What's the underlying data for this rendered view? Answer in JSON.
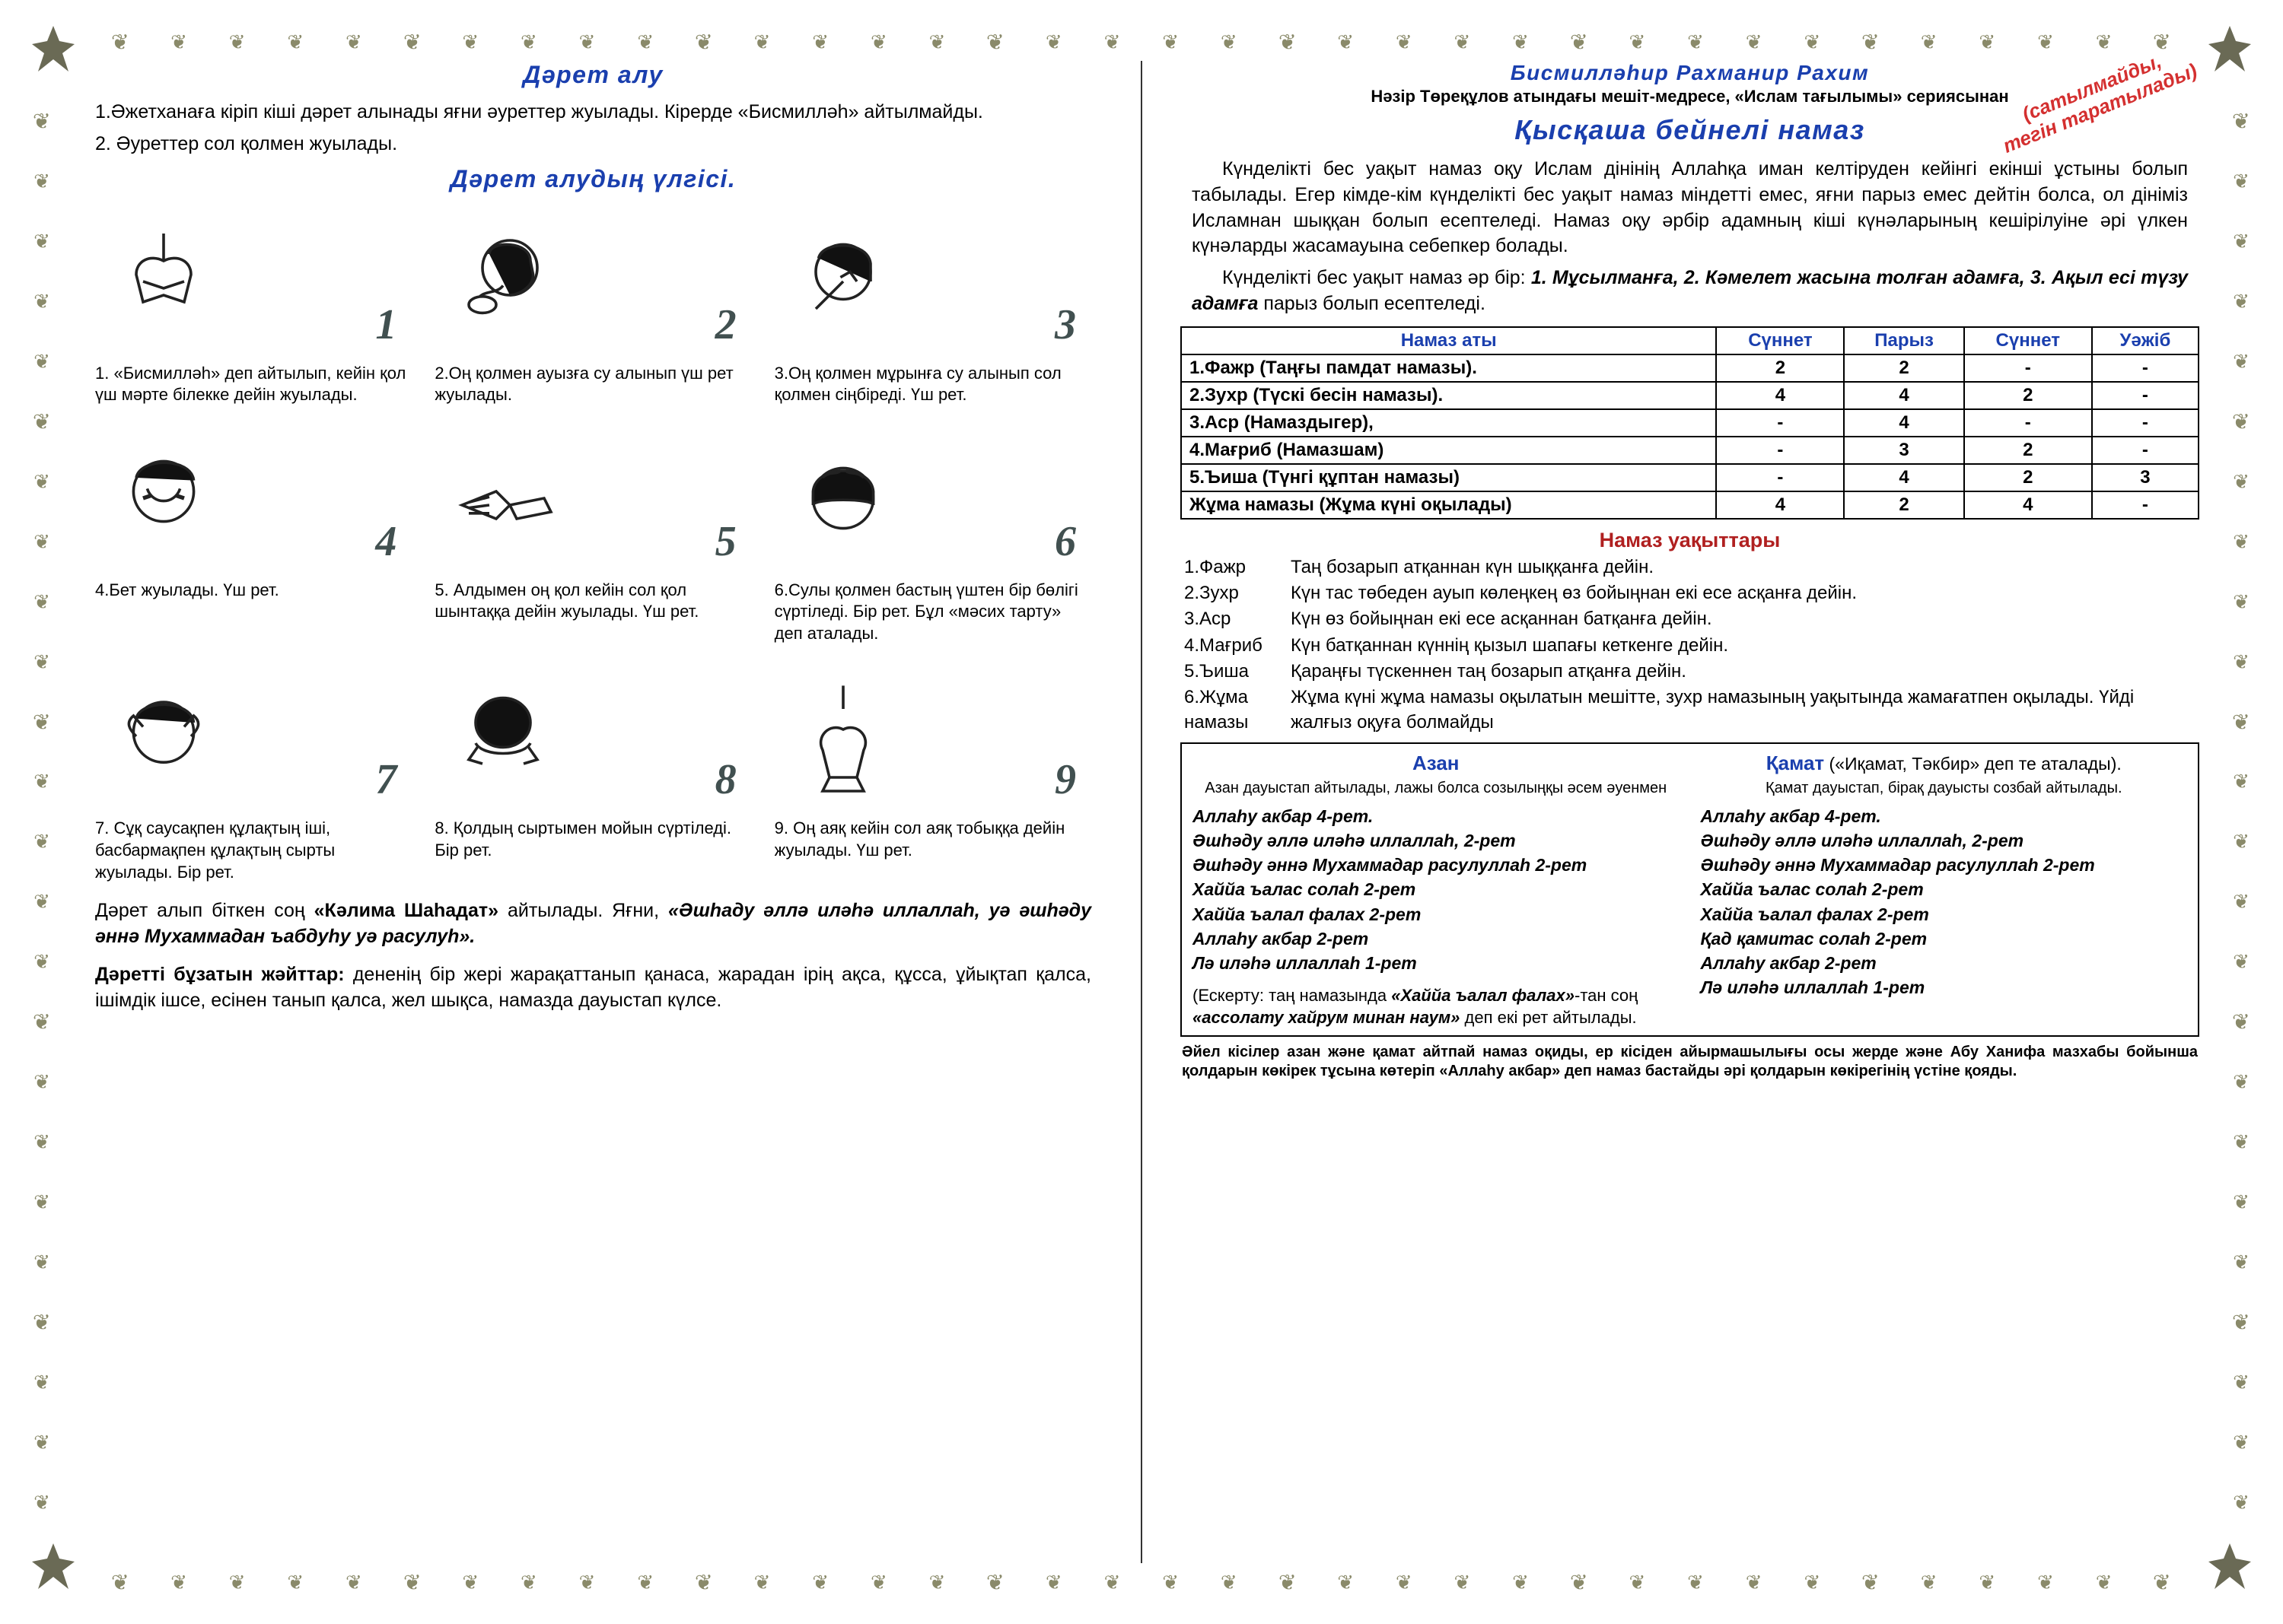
{
  "colors": {
    "title_blue": "#1a3fae",
    "accent_red": "#b02020",
    "stamp_red": "#d43030",
    "ornament": "#8a8a6a",
    "step_number": "#415050",
    "text": "#000000",
    "background": "#ffffff"
  },
  "stamp": {
    "line1": "(сатылмайды,",
    "line2": "тегін таратылады)"
  },
  "left": {
    "title1": "Дәрет алу",
    "intro1": "1.Әжетханаға кіріп кіші дәрет алынады яғни әуреттер жуылады. Кірерде «Бисмилләһ» айтылмайды.",
    "intro2": "2. Әуреттер сол қолмен жуылады.",
    "title2": "Дәрет алудың үлгісі.",
    "steps": [
      {
        "num": "1",
        "txt": "1. «Бисмилләһ» деп айтылып, кейін қол үш мәрте білекке дейін жуылады."
      },
      {
        "num": "2",
        "txt": "2.Оң қолмен ауызға су алынып үш рет жуылады."
      },
      {
        "num": "3",
        "txt": "3.Оң қолмен мұрынға су алынып сол қолмен сіңбіреді. Үш рет."
      },
      {
        "num": "4",
        "txt": "4.Бет жуылады. Үш рет."
      },
      {
        "num": "5",
        "txt": "5. Алдымен оң қол кейін сол қол шынтаққа дейін жуылады. Үш рет."
      },
      {
        "num": "6",
        "txt": "6.Сулы қолмен бастың үштен бір бөлігі сүртіледі. Бір рет. Бұл «мәсих тарту» деп аталады."
      },
      {
        "num": "7",
        "txt": "7. Сұқ саусақпен құлақтың іші, басбармақпен құлақтың сырты жуылады. Бір рет."
      },
      {
        "num": "8",
        "txt": "8. Қолдың сыртымен мойын сүртіледі. Бір рет."
      },
      {
        "num": "9",
        "txt": "9. Оң аяқ кейін сол аяқ тобыққа дейін жуылады. Үш рет."
      }
    ],
    "after1a": "Дәрет алып біткен соң ",
    "after1b": "«Кәлима Шаһадат»",
    "after1c": " айтылады. Яғни, ",
    "after1d": "«Әшһаду әллә иләһә иллаллаһ, уә әшһәду әннә Мухаммадан ъабдуһу уә расулуһ».",
    "after2a": "Дәретті бұзатын жәйттар:",
    "after2b": " дененің бір жері жарақаттанып қанаса, жарадан ірің ақса, құсса, ұйықтап қалса, ішімдік ішсе,  есінен танып қалса, жел шықса, намазда дауыстап күлсе."
  },
  "right": {
    "bismillah": "Бисмилләһир Рахманир Рахим",
    "source": "Нәзір Төреқұлов атындағы мешіт-медресе, «Ислам тағылымы» сериясынан",
    "title": "Қысқаша бейнелі намаз",
    "para1": "Күнделікті бес уақыт намаз оқу Ислам дінінің Аллаһқа иман келтіруден кейінгі екінші ұстыны болып табылады. Егер кімде-кім күнделікті бес уақыт намаз міндетті емес, яғни парыз емес дейтін болса, ол дініміз Исламнан шыққан болып есептеледі. Намаз оқу әрбір адамның кіші күнәларының кешірілуіне әрі үлкен күнәларды жасамауына себепкер болады.",
    "para2a": "Күнделікті бес уақыт намаз әр бір: ",
    "para2b": "1. Мұсылманға, 2. Кәмелет жасына толған адамға, 3. Ақыл есі түзу адамға",
    "para2c": " парыз болып есептеледі.",
    "table": {
      "headers": [
        "Намаз аты",
        "Сүннет",
        "Парыз",
        "Сүннет",
        "Уәжіб"
      ],
      "rows": [
        {
          "name": "1.Фажр (Таңғы памдат намазы).",
          "v": [
            "2",
            "2",
            "-",
            "-"
          ]
        },
        {
          "name": "2.Зухр (Түскі бесін намазы).",
          "v": [
            "4",
            "4",
            "2",
            "-"
          ]
        },
        {
          "name": "3.Аср (Намаздыгер),",
          "v": [
            "-",
            "4",
            "-",
            "-"
          ]
        },
        {
          "name": "4.Мағриб (Намазшам)",
          "v": [
            "-",
            "3",
            "2",
            "-"
          ]
        },
        {
          "name": "5.Ъиша (Түнгі құптан намазы)",
          "v": [
            "-",
            "4",
            "2",
            "3"
          ]
        },
        {
          "name": "Жұма намазы (Жұма күні оқылады)",
          "v": [
            "4",
            "2",
            "4",
            "-"
          ]
        }
      ]
    },
    "times_title": "Намаз уақыттары",
    "times": [
      {
        "label": "1.Фажр",
        "desc": "Таң бозарып атқаннан күн шыққанға дейін."
      },
      {
        "label": "2.Зухр",
        "desc": "Күн тас төбеден ауып көлеңкең өз бойыңнан екі есе асқанға дейін."
      },
      {
        "label": "3.Аср",
        "desc": "Күн өз бойыңнан екі есе асқаннан батқанға дейін."
      },
      {
        "label": "4.Мағриб",
        "desc": "Күн батқаннан күннің қызыл шапағы кеткенге дейін."
      },
      {
        "label": "5.Ъиша",
        "desc": "Қараңғы түскеннен таң бозарып атқанға дейін."
      },
      {
        "label": "6.Жұма намазы",
        "desc": "Жұма күні жұма намазы оқылатын мешітте, зухр намазының уақытында жамағатпен оқылады. Үйді жалғыз оқуға болмайды"
      }
    ],
    "azan": {
      "title": "Азан",
      "sub": "Азан дауыстап айтылады, лажы болса созылыңқы әсем әуенмен",
      "lines": [
        "Аллаһу акбар 4-рет.",
        "Әшһәду әллә иләһә иллаллаһ, 2-рет",
        "Әшһәду әннә Мухаммадар расулуллаһ 2-рет",
        "Хаййа ъалас солаһ 2-рет",
        "Хаййа ъалал фалах 2-рет",
        "Аллаһу акбар 2-рет",
        "Лә иләһә иллаллаһ 1-рет"
      ],
      "note_a": "(Ескерту: таң намазында ",
      "note_b": "«Хаййа ъалал фалах»",
      "note_c": "-тан соң ",
      "note_d": "«ассолату хайрум минан наум»",
      "note_e": " деп екі рет айтылады."
    },
    "qamat": {
      "title_a": "Қамат",
      "title_b": " («Иқамат, Тәкбир» деп те аталады).",
      "sub": "Қамат дауыстап, бірақ дауысты созбай айтылады.",
      "lines": [
        "Аллаһу акбар 4-рет.",
        "Әшһәду әллә иләһә иллаллаһ, 2-рет",
        "Әшһәду әннә Мухаммадар расулуллаһ 2-рет",
        "Хаййа ъалас солаһ 2-рет",
        "Хаййа ъалал фалах 2-рет",
        "Қад қамитас солаһ 2-рет",
        "Аллаһу акбар 2-рет",
        "Лә иләһә иллаллаһ 1-рет"
      ]
    },
    "footnote": "Әйел кісілер азан және қамат айтпай намаз оқиды, ер кісіден айырмашылығы осы жерде және Абу Ханифа мазхабы бойынша қолдарын көкірек тұсына көтеріп «Аллаһу акбар» деп намаз бастайды әрі қолдарын көкірегінің үстіне қояды."
  },
  "ornaments": {
    "h_count": 36,
    "v_count": 24
  },
  "watermark": ""
}
